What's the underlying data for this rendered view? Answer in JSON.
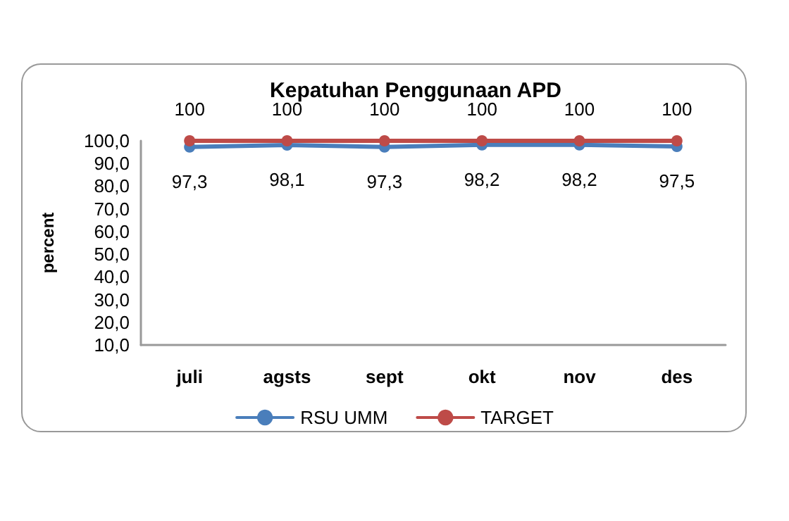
{
  "chart_data": {
    "type": "line",
    "title": "Kepatuhan Penggunaan APD",
    "ylabel": "percent",
    "categories": [
      "juli",
      "agsts",
      "sept",
      "okt",
      "nov",
      "des"
    ],
    "series": [
      {
        "name": "RSU UMM",
        "color": "#4a7ebb",
        "values": [
          97.3,
          98.1,
          97.3,
          98.2,
          98.2,
          97.5
        ],
        "value_labels": [
          "97,3",
          "98,1",
          "97,3",
          "98,2",
          "98,2",
          "97,5"
        ]
      },
      {
        "name": "TARGET",
        "color": "#be4b48",
        "values": [
          100,
          100,
          100,
          100,
          100,
          100
        ],
        "value_labels": [
          "100",
          "100",
          "100",
          "100",
          "100",
          "100"
        ]
      }
    ],
    "ylim": [
      10,
      100
    ],
    "yticks": [
      {
        "value": 10,
        "label": "10,0"
      },
      {
        "value": 20,
        "label": "20,0"
      },
      {
        "value": 30,
        "label": "30,0"
      },
      {
        "value": 40,
        "label": "40,0"
      },
      {
        "value": 50,
        "label": "50,0"
      },
      {
        "value": 60,
        "label": "60,0"
      },
      {
        "value": 70,
        "label": "70,0"
      },
      {
        "value": 80,
        "label": "80,0"
      },
      {
        "value": 90,
        "label": "90,0"
      },
      {
        "value": 100,
        "label": "100,0"
      }
    ],
    "grid": false,
    "legend": "bottom",
    "marker": "circle",
    "line_style": "solid"
  }
}
